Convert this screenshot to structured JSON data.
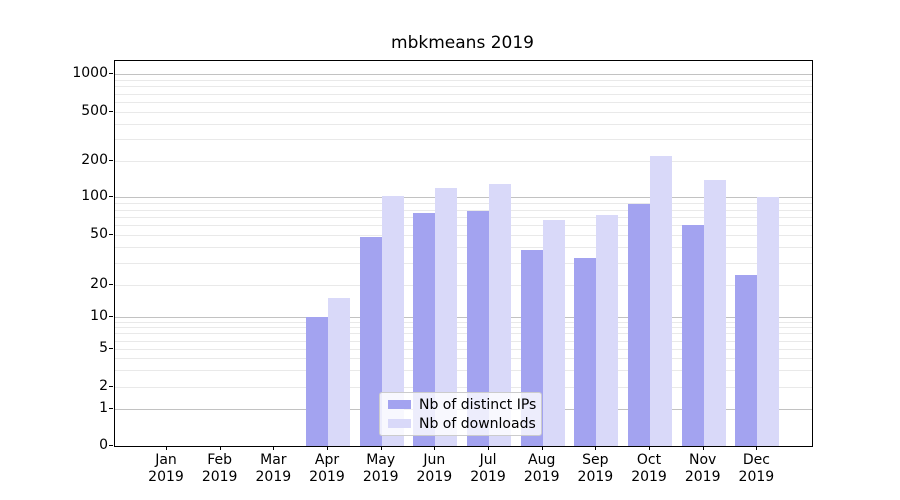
{
  "title": "mbkmeans 2019",
  "colors": {
    "distinct_ips": "#a3a3f0",
    "downloads": "#d9d9f9",
    "grid_major": "#c2c2c2",
    "grid_minor": "#e9e9e9",
    "axis": "#000000",
    "legend_border": "#cccccc",
    "text": "#000000"
  },
  "chart_data": {
    "type": "bar",
    "title": "mbkmeans 2019",
    "xlabel": "",
    "ylabel": "",
    "scale": "symlog",
    "grid": true,
    "legend_position": "lower-center-inside",
    "categories": [
      {
        "month": "Jan",
        "year": "2019"
      },
      {
        "month": "Feb",
        "year": "2019"
      },
      {
        "month": "Mar",
        "year": "2019"
      },
      {
        "month": "Apr",
        "year": "2019"
      },
      {
        "month": "May",
        "year": "2019"
      },
      {
        "month": "Jun",
        "year": "2019"
      },
      {
        "month": "Jul",
        "year": "2019"
      },
      {
        "month": "Aug",
        "year": "2019"
      },
      {
        "month": "Sep",
        "year": "2019"
      },
      {
        "month": "Oct",
        "year": "2019"
      },
      {
        "month": "Nov",
        "year": "2019"
      },
      {
        "month": "Dec",
        "year": "2019"
      }
    ],
    "series": [
      {
        "name": "Nb of distinct IPs",
        "values": [
          0,
          0,
          0,
          10,
          48,
          75,
          78,
          38,
          33,
          89,
          60,
          24
        ]
      },
      {
        "name": "Nb of downloads",
        "values": [
          0,
          0,
          0,
          15,
          103,
          119,
          130,
          66,
          72,
          218,
          140,
          101
        ]
      }
    ],
    "yticks": [
      0,
      1,
      2,
      5,
      10,
      20,
      50,
      100,
      200,
      500,
      1000
    ],
    "ylim": [
      0,
      1300
    ]
  }
}
